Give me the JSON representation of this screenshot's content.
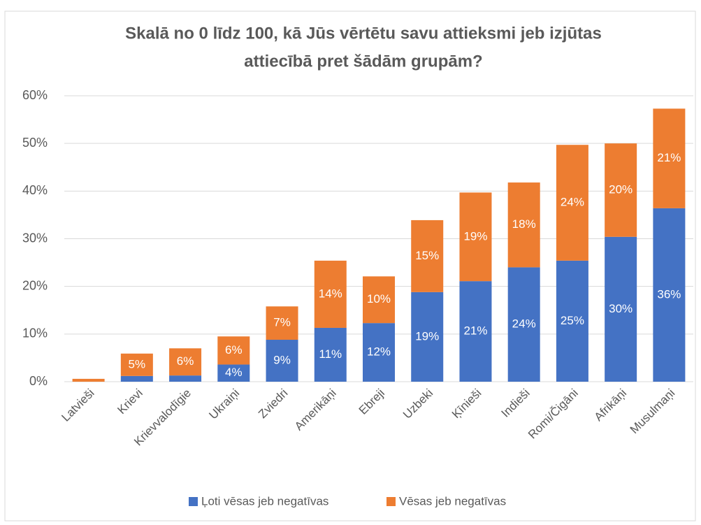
{
  "chart_data": {
    "type": "stacked_bar",
    "title": [
      "Skalā no 0 līdz 100, kā Jūs vērtētu savu attieksmi jeb izjūtas",
      "attiecībā pret šādām grupām?"
    ],
    "categories": [
      "Latvieši",
      "Krievi",
      "Krievvalodīgie",
      "Ukraiņi",
      "Zviedri",
      "Amerikāņi",
      "Ebreji",
      "Uzbeki",
      "Ķīnieši",
      "Indieši",
      "Romi/Čigāni",
      "Afrikāņi",
      "Musulmaņi"
    ],
    "series": [
      {
        "name": "Ļoti vēsas jeb negatīvas",
        "color": "#4472c4",
        "values": [
          0,
          1.2,
          1.3,
          3.6,
          8.8,
          11.3,
          12.3,
          18.8,
          21.1,
          24.0,
          25.4,
          30.4,
          36.4
        ],
        "value_labels": [
          null,
          null,
          null,
          "4%",
          "9%",
          "11%",
          "12%",
          "19%",
          "21%",
          "24%",
          "25%",
          "30%",
          "36%"
        ]
      },
      {
        "name": "Vēsas jeb negatīvas",
        "color": "#ed7d31",
        "values": [
          0.6,
          4.7,
          5.7,
          5.9,
          7.0,
          14.1,
          9.8,
          15.1,
          18.6,
          17.8,
          24.3,
          19.6,
          20.9
        ],
        "value_labels": [
          null,
          "5%",
          "6%",
          "6%",
          "7%",
          "14%",
          "10%",
          "15%",
          "19%",
          "18%",
          "24%",
          "20%",
          "21%"
        ]
      }
    ],
    "ylim": [
      0,
      60
    ],
    "yticks": [
      {
        "value": 0,
        "label": "0%"
      },
      {
        "value": 10,
        "label": "10%"
      },
      {
        "value": 20,
        "label": "20%"
      },
      {
        "value": 30,
        "label": "30%"
      },
      {
        "value": 40,
        "label": "40%"
      },
      {
        "value": 50,
        "label": "50%"
      },
      {
        "value": 60,
        "label": "60%"
      }
    ],
    "grid": true,
    "legend": "bottom"
  }
}
